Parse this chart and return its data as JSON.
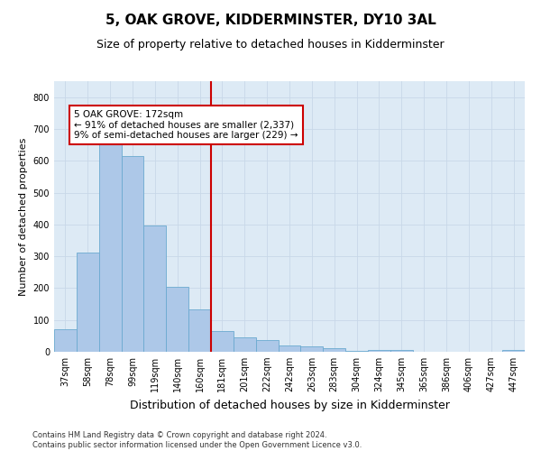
{
  "title": "5, OAK GROVE, KIDDERMINSTER, DY10 3AL",
  "subtitle": "Size of property relative to detached houses in Kidderminster",
  "xlabel": "Distribution of detached houses by size in Kidderminster",
  "ylabel": "Number of detached properties",
  "categories": [
    "37sqm",
    "58sqm",
    "78sqm",
    "99sqm",
    "119sqm",
    "140sqm",
    "160sqm",
    "181sqm",
    "201sqm",
    "222sqm",
    "242sqm",
    "263sqm",
    "283sqm",
    "304sqm",
    "324sqm",
    "345sqm",
    "365sqm",
    "386sqm",
    "406sqm",
    "427sqm",
    "447sqm"
  ],
  "values": [
    72,
    313,
    663,
    615,
    398,
    205,
    133,
    65,
    44,
    36,
    20,
    17,
    11,
    2,
    6,
    6,
    0,
    0,
    0,
    0,
    6
  ],
  "bar_color": "#adc8e8",
  "bar_edge_color": "#6baad0",
  "vline_color": "#cc0000",
  "vline_index": 7,
  "annotation_text": "5 OAK GROVE: 172sqm\n← 91% of detached houses are smaller (2,337)\n9% of semi-detached houses are larger (229) →",
  "box_edge_color": "#cc0000",
  "ylim_max": 850,
  "yticks": [
    0,
    100,
    200,
    300,
    400,
    500,
    600,
    700,
    800
  ],
  "grid_color": "#c8d8e8",
  "background_color": "#ddeaf5",
  "footer_line1": "Contains HM Land Registry data © Crown copyright and database right 2024.",
  "footer_line2": "Contains public sector information licensed under the Open Government Licence v3.0.",
  "title_fontsize": 11,
  "subtitle_fontsize": 9,
  "xlabel_fontsize": 9,
  "ylabel_fontsize": 8,
  "tick_fontsize": 7,
  "annotation_fontsize": 7.5,
  "footer_fontsize": 6
}
